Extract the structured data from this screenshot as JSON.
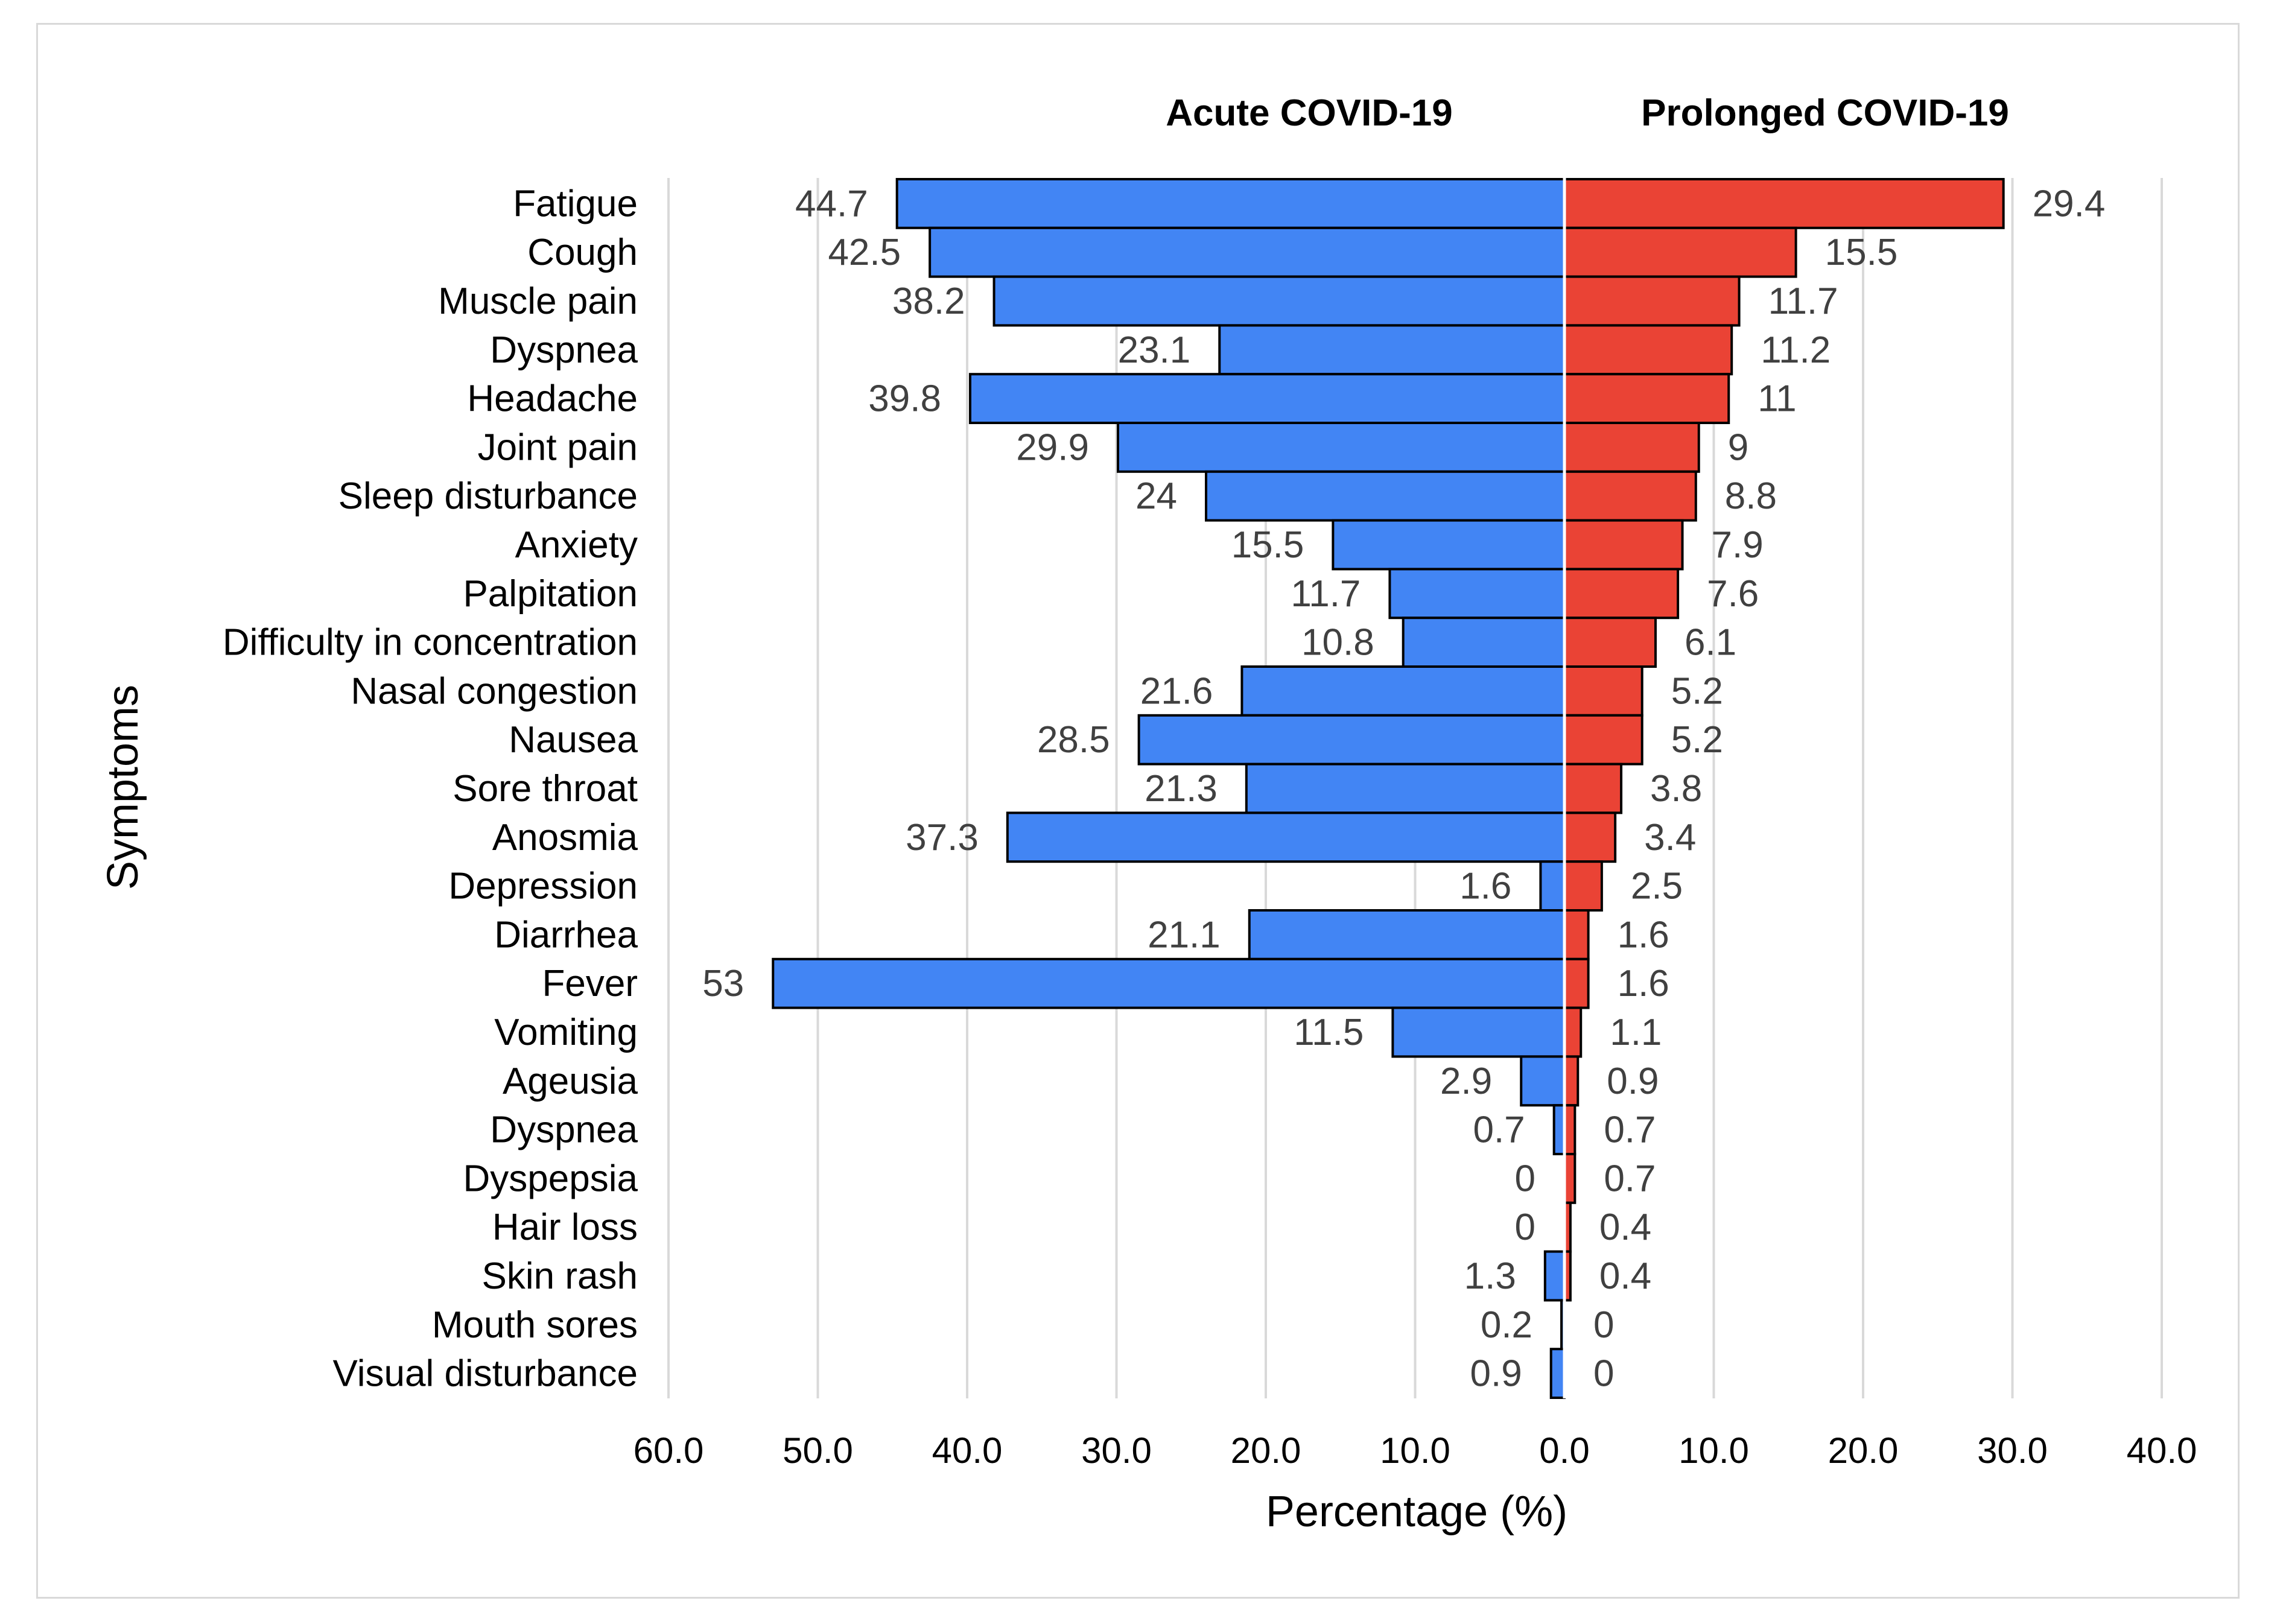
{
  "chart_data": {
    "type": "bar",
    "orientation": "horizontal-diverging",
    "ylabel": "Symptoms",
    "xlabel": "Percentage (%)",
    "xlim": [
      -60,
      40
    ],
    "x_ticks": [
      "60.0",
      "50.0",
      "40.0",
      "30.0",
      "20.0",
      "10.0",
      "0.0",
      "10.0",
      "20.0",
      "30.0",
      "40.0"
    ],
    "grid": true,
    "categories": [
      "Fatigue",
      "Cough",
      "Muscle pain",
      "Dyspnea",
      "Headache",
      "Joint pain",
      "Sleep disturbance",
      "Anxiety",
      "Palpitation",
      "Difficulty in concentration",
      "Nasal congestion",
      "Nausea",
      "Sore throat",
      "Anosmia",
      "Depression",
      "Diarrhea",
      "Fever",
      "Vomiting",
      "Ageusia",
      "Dyspnea",
      "Dyspepsia",
      "Hair loss",
      "Skin rash",
      "Mouth sores",
      "Visual disturbance"
    ],
    "series": [
      {
        "name": "Acute COVID-19",
        "side": "left",
        "color": "#4285f4",
        "values": [
          44.7,
          42.5,
          38.2,
          23.1,
          39.8,
          29.9,
          24,
          15.5,
          11.7,
          10.8,
          21.6,
          28.5,
          21.3,
          37.3,
          1.6,
          21.1,
          53,
          11.5,
          2.9,
          0.7,
          0,
          0,
          1.3,
          0.2,
          0.9
        ]
      },
      {
        "name": "Prolonged COVID-19",
        "side": "right",
        "color": "#ea4335",
        "values": [
          29.4,
          15.5,
          11.7,
          11.2,
          11,
          9,
          8.8,
          7.9,
          7.6,
          6.1,
          5.2,
          5.2,
          3.8,
          3.4,
          2.5,
          1.6,
          1.6,
          1.1,
          0.9,
          0.7,
          0.7,
          0.4,
          0.4,
          0,
          0
        ]
      }
    ]
  }
}
